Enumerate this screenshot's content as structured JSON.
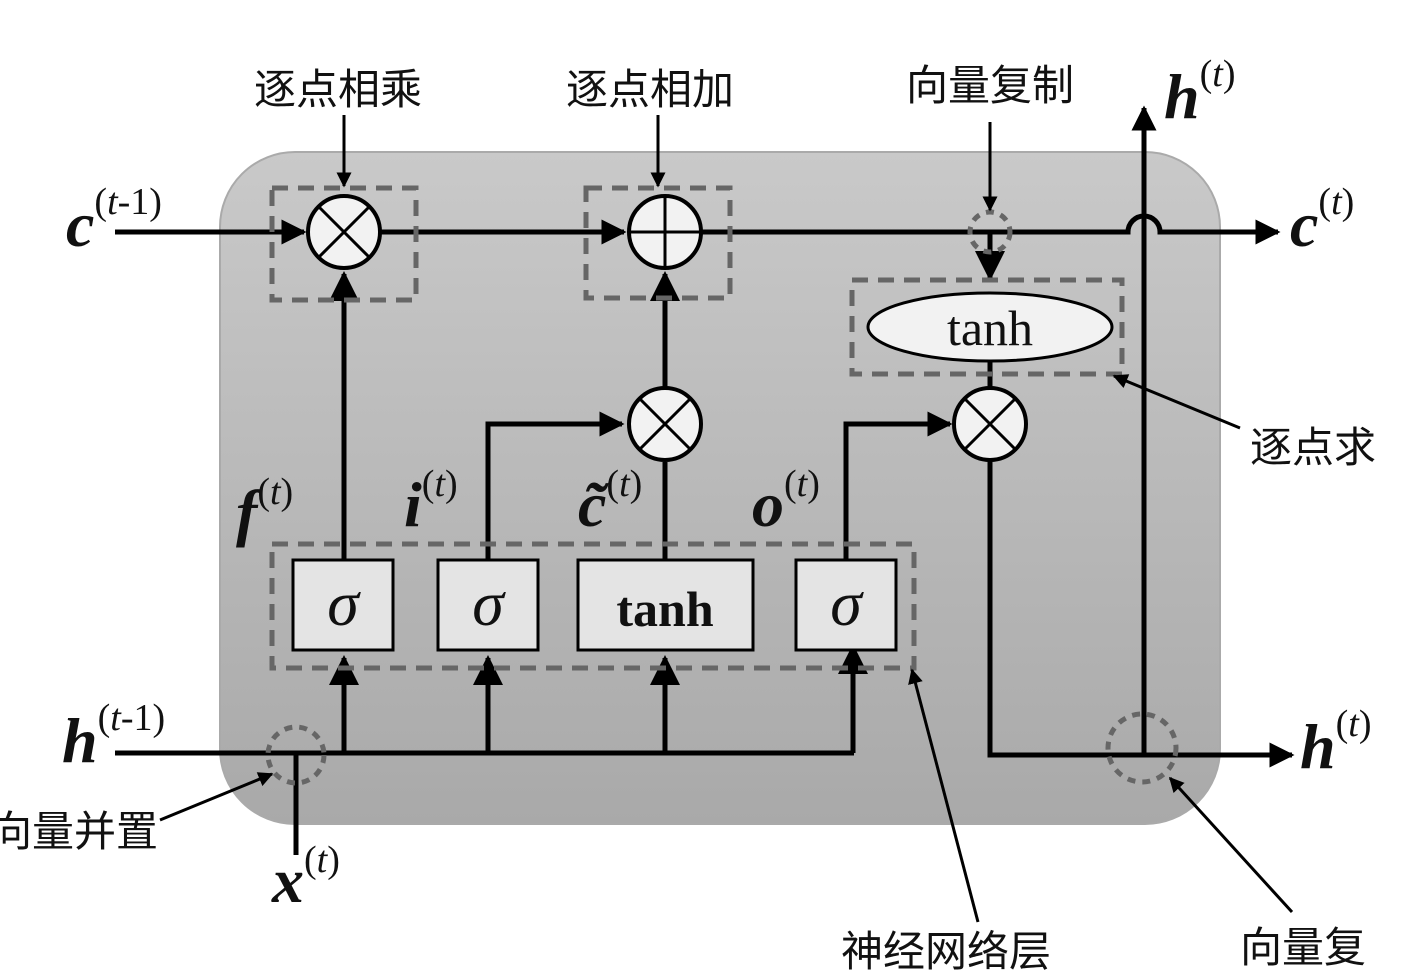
{
  "annotations": {
    "pointwise_multiply": "逐点相乘",
    "pointwise_add": "逐点相加",
    "vector_copy_top": "向量复制",
    "pointwise_op_right": "逐点求",
    "vector_concat": "向量并置",
    "neural_net_layer": "神经网络层",
    "vector_copy_bottom": "向量复"
  },
  "symbols": {
    "c_prev": {
      "base": "c",
      "sup_open": "(",
      "sup_var": "t",
      "sup_rest": "-1)"
    },
    "c_next": {
      "base": "c",
      "sup_open": "(",
      "sup_var": "t",
      "sup_rest": ")"
    },
    "h_prev": {
      "base": "h",
      "sup_open": "(",
      "sup_var": "t",
      "sup_rest": "-1)"
    },
    "h_next_right": {
      "base": "h",
      "sup_open": "(",
      "sup_var": "t",
      "sup_rest": ")"
    },
    "h_next_top": {
      "base": "h",
      "sup_open": "(",
      "sup_var": "t",
      "sup_rest": ")"
    },
    "x_in": {
      "base": "x",
      "sup_open": "(",
      "sup_var": "t",
      "sup_rest": ")"
    },
    "f_gate": {
      "base": "f",
      "sup_open": "(",
      "sup_var": "t",
      "sup_rest": ")"
    },
    "i_gate": {
      "base": "i",
      "sup_open": "(",
      "sup_var": "t",
      "sup_rest": ")"
    },
    "c_tilde": {
      "base": "c̃",
      "sup_open": "(",
      "sup_var": "t",
      "sup_rest": ")"
    },
    "o_gate": {
      "base": "o",
      "sup_open": "(",
      "sup_var": "t",
      "sup_rest": ")"
    }
  },
  "layers": {
    "sigma_f": "σ",
    "sigma_i": "σ",
    "tanh_layer": "tanh",
    "sigma_o": "σ",
    "tanh_pointwise": "tanh"
  },
  "colors": {
    "cell_fill_top": "#c9c9c9",
    "cell_fill_bottom": "#a9a9a9",
    "layer_box_fill": "#e4e4e4",
    "op_fill": "#f2f2f2",
    "dash_stroke": "#666666"
  }
}
